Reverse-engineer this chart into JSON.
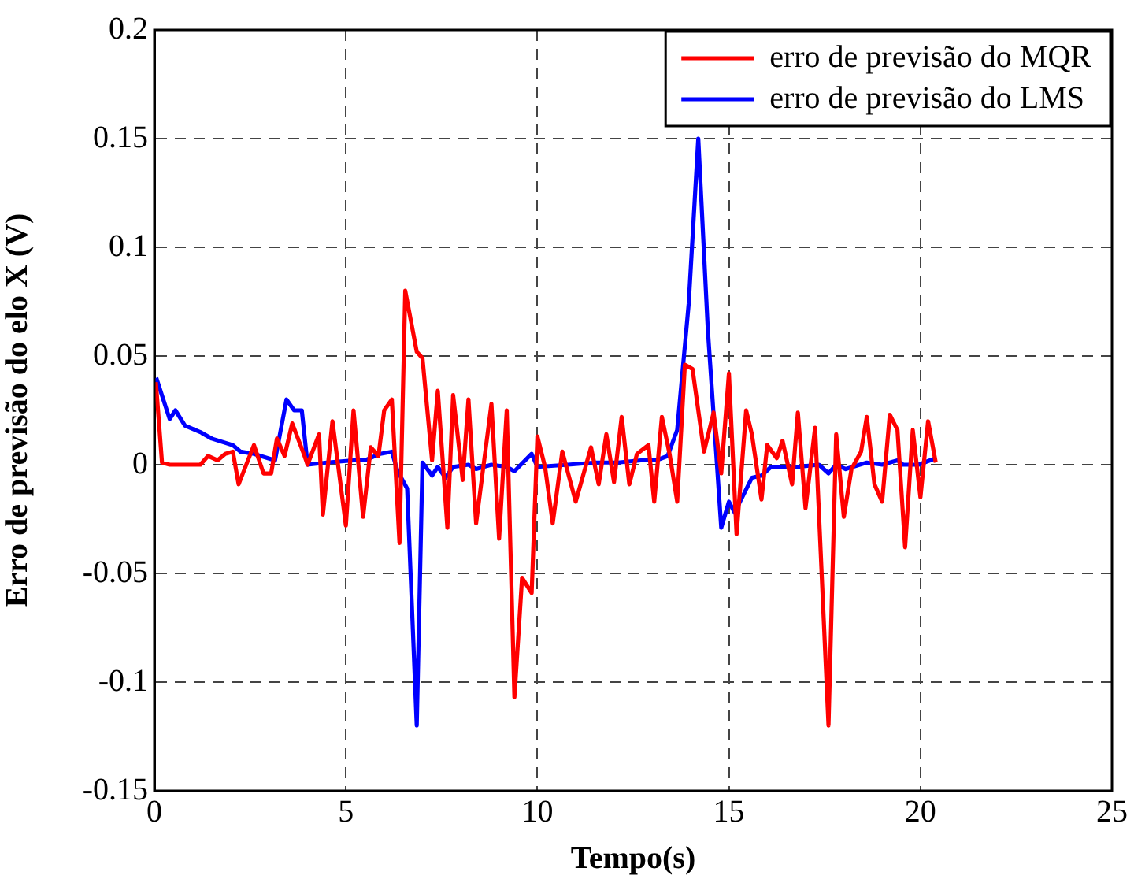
{
  "chart_data": {
    "type": "line",
    "xlabel": "Tempo(s)",
    "ylabel": "Erro de previsão do elo X (V)",
    "xlim": [
      0,
      25
    ],
    "xticks": [
      0,
      5,
      10,
      15,
      20,
      25
    ],
    "ylim": [
      -0.15,
      0.2
    ],
    "yticks": [
      -0.15,
      -0.1,
      -0.05,
      0,
      0.05,
      0.1,
      0.15,
      0.2
    ],
    "grid": true,
    "legend": "top right",
    "marker": "none",
    "line_style": "solid",
    "series": [
      {
        "name": "erro de previsão do MQR",
        "color": "#ff0000",
        "x": [
          0.04,
          0.2,
          0.4,
          1.2,
          1.4,
          1.65,
          1.85,
          2.05,
          2.2,
          2.6,
          2.85,
          3.05,
          3.2,
          3.4,
          3.6,
          3.9,
          4.0,
          4.3,
          4.4,
          4.65,
          5.0,
          5.2,
          5.45,
          5.65,
          5.85,
          6.0,
          6.2,
          6.4,
          6.55,
          6.85,
          7.0,
          7.25,
          7.4,
          7.65,
          7.8,
          8.05,
          8.2,
          8.4,
          8.8,
          9.0,
          9.2,
          9.4,
          9.6,
          9.85,
          10.0,
          10.2,
          10.4,
          10.65,
          11.0,
          11.4,
          11.6,
          11.8,
          12.0,
          12.2,
          12.4,
          12.6,
          12.9,
          13.05,
          13.25,
          13.45,
          13.65,
          13.85,
          14.05,
          14.35,
          14.6,
          14.8,
          15.0,
          15.2,
          15.45,
          15.6,
          15.85,
          16.0,
          16.25,
          16.4,
          16.65,
          16.8,
          17.0,
          17.25,
          17.6,
          17.8,
          18.0,
          18.2,
          18.45,
          18.6,
          18.8,
          19.0,
          19.2,
          19.4,
          19.6,
          19.8,
          20.0,
          20.2,
          20.4
        ],
        "values": [
          0.038,
          0.001,
          0,
          0,
          0.004,
          0.002,
          0.005,
          0.006,
          -0.009,
          0.009,
          -0.004,
          -0.004,
          0.012,
          0.004,
          0.019,
          0.005,
          0,
          0.014,
          -0.023,
          0.02,
          -0.028,
          0.025,
          -0.024,
          0.008,
          0.004,
          0.025,
          0.03,
          -0.036,
          0.08,
          0.052,
          0.049,
          0.002,
          0.034,
          -0.029,
          0.032,
          -0.007,
          0.03,
          -0.027,
          0.028,
          -0.034,
          0.025,
          -0.107,
          -0.052,
          -0.059,
          0.013,
          -0.001,
          -0.027,
          0.006,
          -0.017,
          0.008,
          -0.009,
          0.014,
          -0.008,
          0.022,
          -0.009,
          0.005,
          0.009,
          -0.017,
          0.022,
          0.005,
          -0.017,
          0.046,
          0.044,
          0.006,
          0.024,
          -0.004,
          0.042,
          -0.032,
          0.025,
          0.014,
          -0.016,
          0.009,
          0.003,
          0.011,
          -0.009,
          0.024,
          -0.02,
          0.017,
          -0.12,
          0.014,
          -0.024,
          -0.002,
          0.006,
          0.022,
          -0.009,
          -0.017,
          0.023,
          0.016,
          -0.038,
          0.016,
          -0.015,
          0.02,
          0.001
        ]
      },
      {
        "name": "erro de previsão do LMS",
        "color": "#0000ff",
        "x": [
          0.05,
          0.4,
          0.55,
          0.8,
          1.2,
          1.5,
          2.05,
          2.25,
          2.6,
          3.15,
          3.45,
          3.65,
          3.85,
          4.0,
          4.5,
          5.2,
          5.5,
          5.9,
          6.2,
          6.35,
          6.6,
          6.85,
          7.0,
          7.25,
          7.4,
          7.6,
          7.8,
          8.2,
          8.4,
          8.8,
          9.2,
          9.4,
          9.85,
          10.0,
          10.8,
          11.5,
          12.1,
          12.7,
          13.1,
          13.4,
          13.65,
          13.95,
          14.2,
          14.45,
          14.8,
          15.0,
          15.15,
          15.6,
          15.85,
          16.1,
          16.8,
          17.35,
          17.6,
          17.8,
          18.05,
          18.6,
          19.0,
          19.4,
          19.55,
          19.95,
          20.4
        ],
        "values": [
          0.04,
          0.021,
          0.025,
          0.018,
          0.015,
          0.012,
          0.009,
          0.006,
          0.005,
          0.002,
          0.03,
          0.025,
          0.025,
          0,
          0.001,
          0.002,
          0.002,
          0.005,
          0.006,
          -0.003,
          -0.011,
          -0.12,
          0.001,
          -0.005,
          -0.001,
          -0.006,
          -0.001,
          0,
          -0.002,
          0,
          -0.001,
          -0.003,
          0.005,
          -0.001,
          0,
          0.001,
          0.001,
          0.002,
          0.002,
          0.004,
          0.016,
          0.074,
          0.15,
          0.062,
          -0.029,
          -0.017,
          -0.022,
          -0.006,
          -0.005,
          -0.001,
          -0.001,
          0,
          -0.004,
          0,
          -0.002,
          0.001,
          0,
          0.002,
          0,
          0,
          0.003
        ]
      }
    ]
  }
}
